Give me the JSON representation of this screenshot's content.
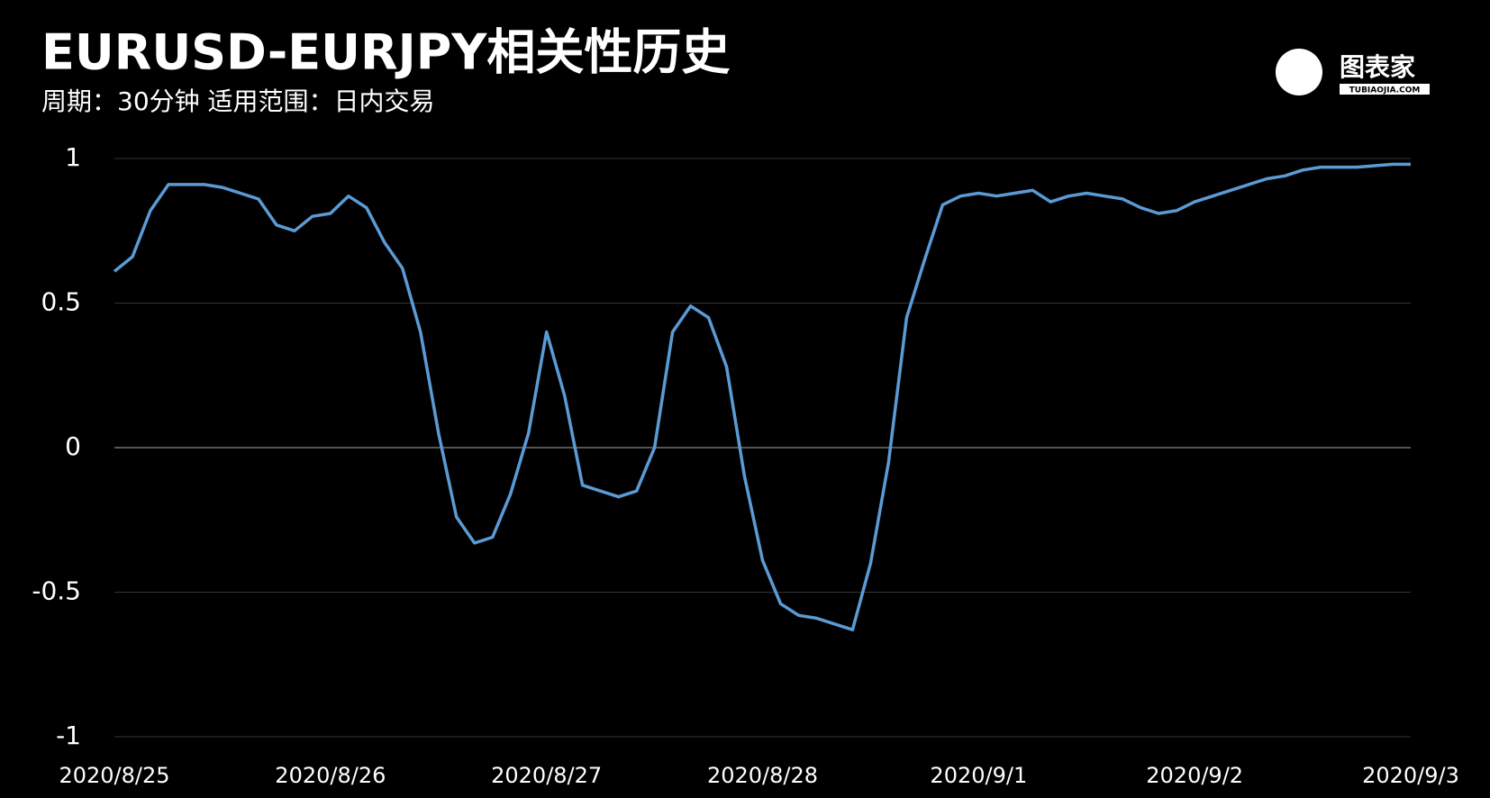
{
  "chart_data": {
    "type": "line",
    "title": "EURUSD-EURJPY相关性历史",
    "subtitle": "周期：30分钟  适用范围：日内交易",
    "logo": {
      "name": "图表家",
      "site": "TUBIAOJIA.COM"
    },
    "categories": [
      "2020/8/25",
      null,
      null,
      null,
      null,
      null,
      null,
      null,
      null,
      null,
      null,
      null,
      "2020/8/26",
      null,
      null,
      null,
      null,
      null,
      null,
      null,
      null,
      null,
      null,
      null,
      "2020/8/27",
      null,
      null,
      null,
      null,
      null,
      null,
      null,
      null,
      null,
      null,
      null,
      "2020/8/28",
      null,
      null,
      null,
      null,
      null,
      null,
      null,
      null,
      null,
      null,
      null,
      "2020/9/1",
      null,
      null,
      null,
      null,
      null,
      null,
      null,
      null,
      null,
      null,
      null,
      "2020/9/2",
      null,
      null,
      null,
      null,
      null,
      null,
      null,
      null,
      null,
      null,
      null,
      "2020/9/3"
    ],
    "series": [
      {
        "name": "EURUSD-EURJPY",
        "color": "#5b9bd5",
        "values": [
          0.61,
          0.66,
          0.82,
          0.91,
          0.91,
          0.91,
          0.9,
          0.88,
          0.86,
          0.77,
          0.75,
          0.8,
          0.81,
          0.87,
          0.83,
          0.71,
          0.62,
          0.4,
          0.05,
          -0.24,
          -0.33,
          -0.31,
          -0.16,
          0.05,
          0.4,
          0.18,
          -0.13,
          -0.15,
          -0.17,
          -0.15,
          0.0,
          0.4,
          0.49,
          0.45,
          0.28,
          -0.1,
          -0.39,
          -0.54,
          -0.58,
          -0.59,
          -0.61,
          -0.63,
          -0.4,
          -0.05,
          0.45,
          0.65,
          0.84,
          0.87,
          0.88,
          0.87,
          0.88,
          0.89,
          0.85,
          0.87,
          0.88,
          0.87,
          0.86,
          0.83,
          0.81,
          0.82,
          0.85,
          0.87,
          0.89,
          0.91,
          0.93,
          0.94,
          0.96,
          0.97,
          0.97,
          0.97,
          0.975,
          0.98,
          0.98
        ]
      }
    ],
    "ylim": [
      -1,
      1
    ],
    "yticks": [
      -1,
      -0.5,
      0,
      0.5,
      1
    ],
    "grid": true
  }
}
